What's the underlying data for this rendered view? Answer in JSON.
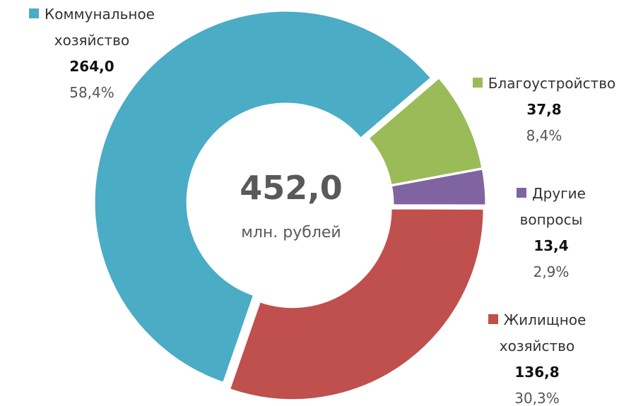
{
  "chart_data": {
    "type": "donut",
    "categories": [
      "Коммунальное хозяйство",
      "Благоустройство",
      "Другие вопросы",
      "Жилищное хозяйство"
    ],
    "values": [
      264.0,
      37.8,
      13.4,
      136.8
    ],
    "value_labels": [
      "264,0",
      "37,8",
      "13,4",
      "136,8"
    ],
    "percent_labels": [
      "58,4%",
      "8,4%",
      "2,9%",
      "30,3%"
    ],
    "colors": [
      "#4bacc6",
      "#9bbb59",
      "#8064a2",
      "#c0504d"
    ],
    "center_label": "452,0",
    "center_sublabel": "млн. рублей"
  }
}
